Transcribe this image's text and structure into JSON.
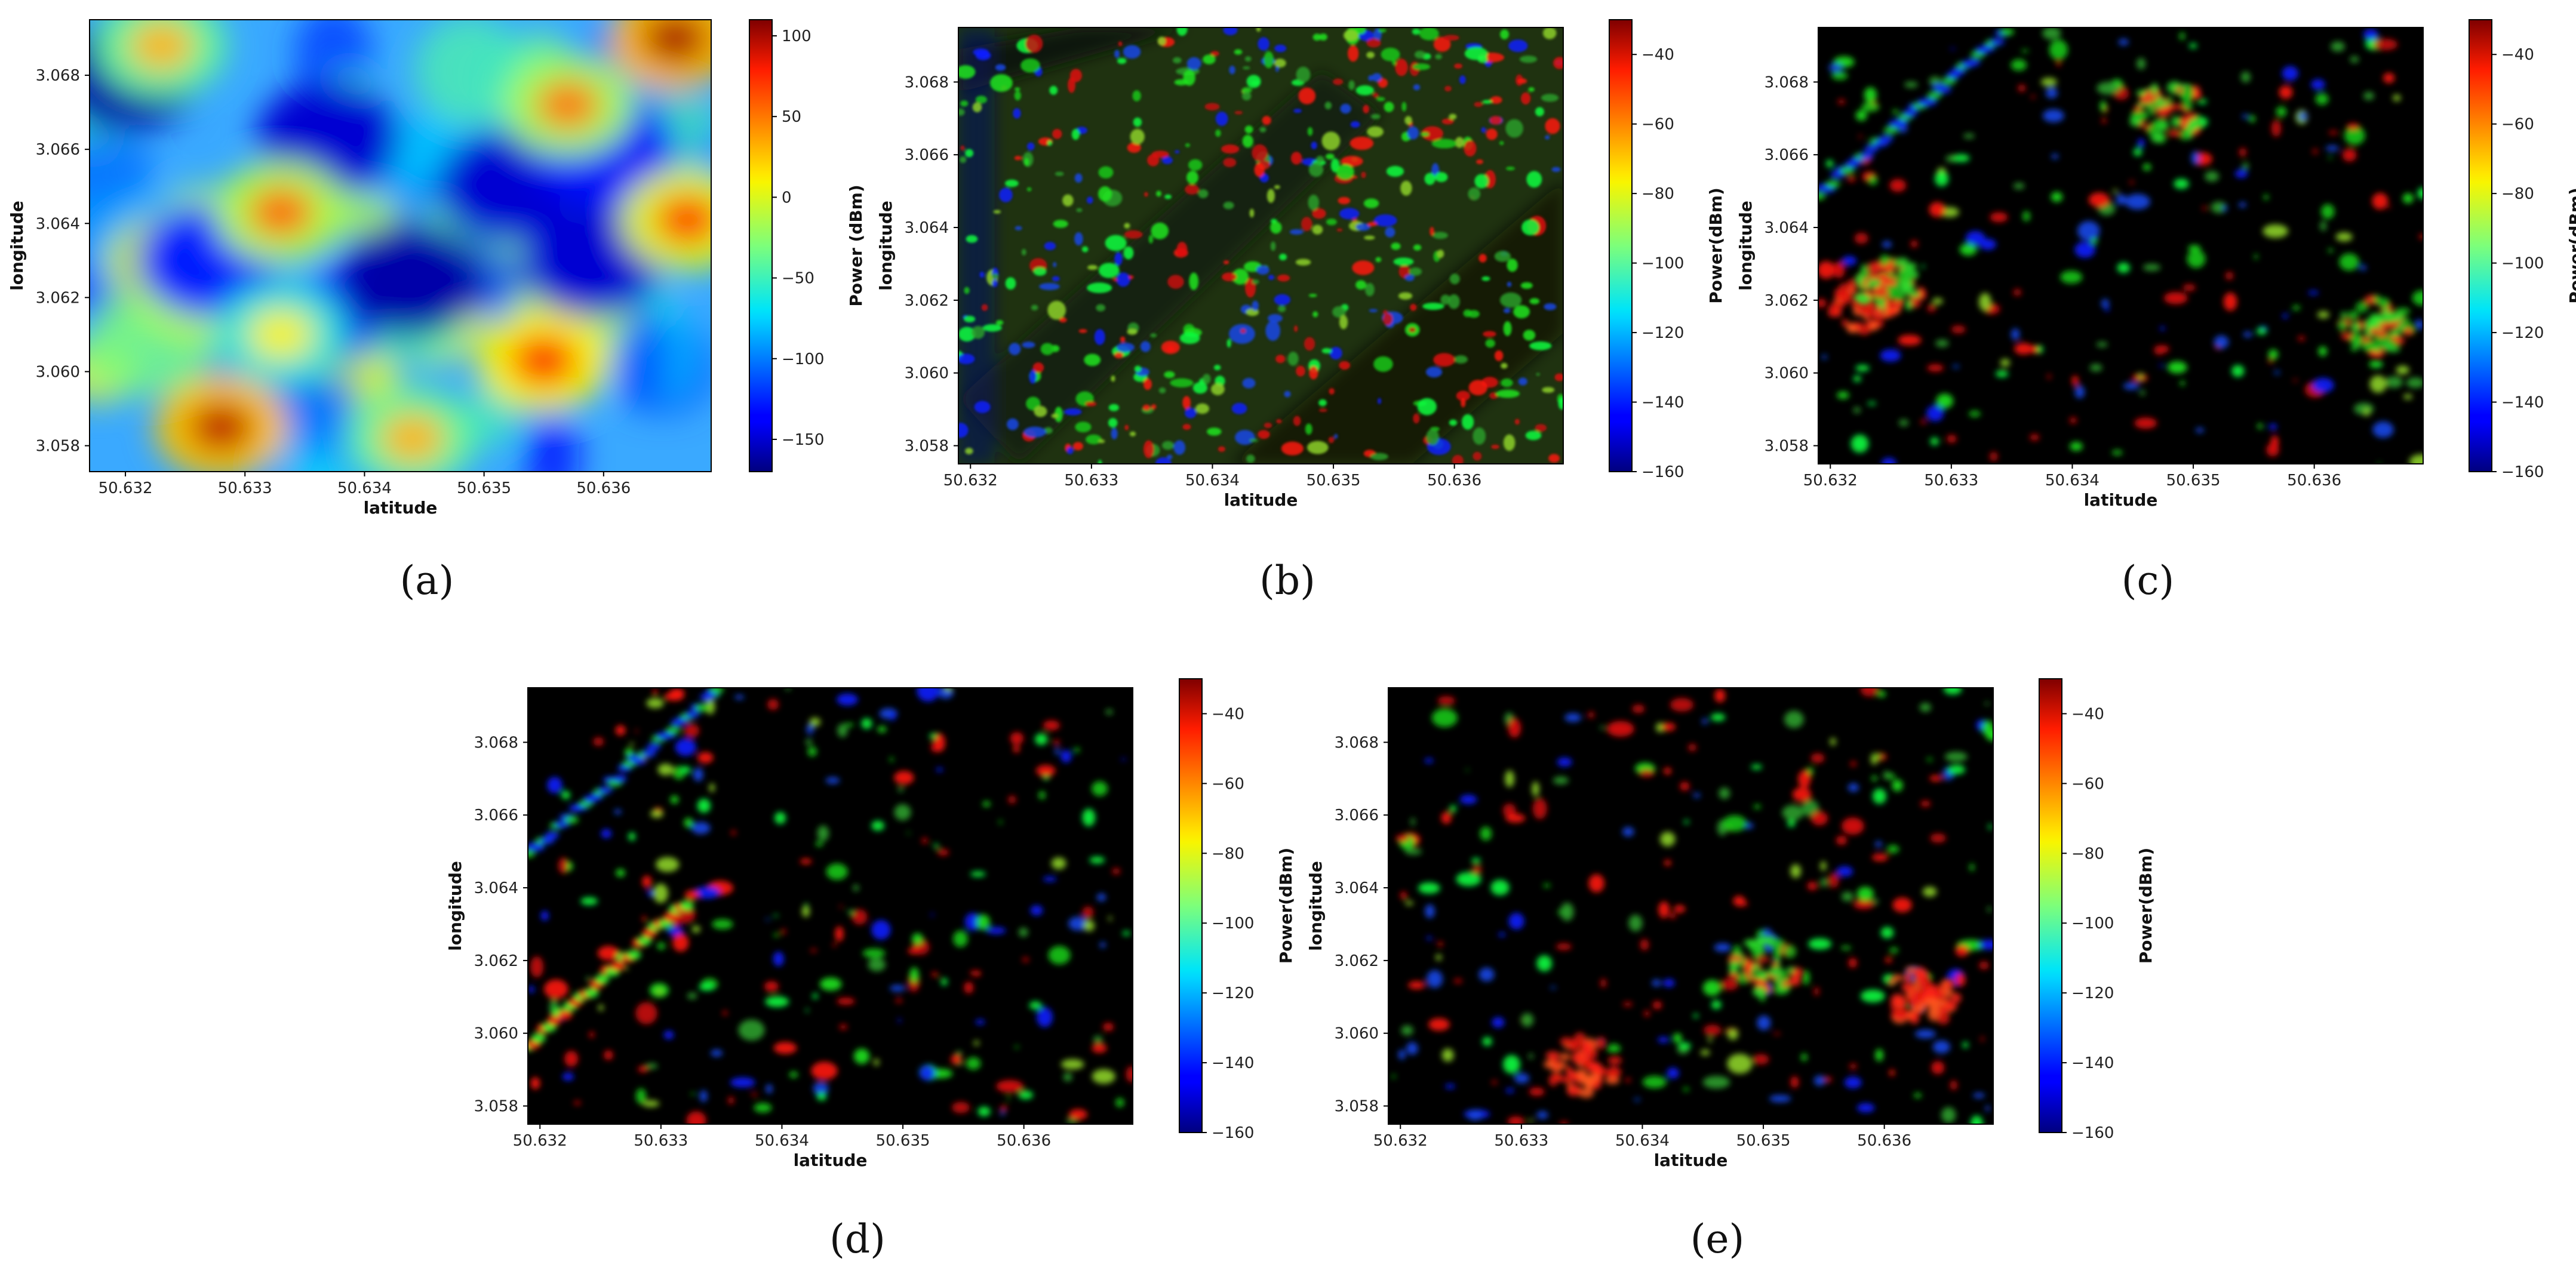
{
  "chart_data": [
    {
      "panel_label": "(a)",
      "type": "heatmap",
      "style": "jet-smooth",
      "xlabel": "latitude",
      "ylabel": "longitude",
      "x_ticks": [
        "50.632",
        "50.633",
        "50.634",
        "50.635",
        "50.636"
      ],
      "y_ticks": [
        "3.068",
        "3.066",
        "3.064",
        "3.062",
        "3.060",
        "3.058"
      ],
      "xlim": [
        50.6317,
        50.6369
      ],
      "ylim": [
        3.0573,
        3.0695
      ],
      "colorbar_label": "Power (dBm)",
      "colorbar_ticks": [
        "100",
        "50",
        "0",
        "−50",
        "−100",
        "−150"
      ],
      "colorbar_range": [
        -170,
        110
      ],
      "hotspots": [
        {
          "x": 50.6328,
          "y": 3.0585,
          "value": 95
        },
        {
          "x": 50.6355,
          "y": 3.0603,
          "value": 80
        },
        {
          "x": 50.6366,
          "y": 3.069,
          "value": 100
        },
        {
          "x": 50.6367,
          "y": 3.0641,
          "value": 70
        },
        {
          "x": 50.6333,
          "y": 3.0643,
          "value": 55
        },
        {
          "x": 50.6357,
          "y": 3.0672,
          "value": 50
        },
        {
          "x": 50.6323,
          "y": 3.0688,
          "value": 30
        },
        {
          "x": 50.6344,
          "y": 3.0582,
          "value": 30
        },
        {
          "x": 50.6333,
          "y": 3.061,
          "value": 10
        }
      ],
      "coldspots": [
        {
          "x": 50.632,
          "y": 3.068,
          "value": -160
        },
        {
          "x": 50.6344,
          "y": 3.0625,
          "value": -160
        },
        {
          "x": 50.6337,
          "y": 3.0663,
          "value": -150
        },
        {
          "x": 50.6352,
          "y": 3.065,
          "value": -150
        },
        {
          "x": 50.6359,
          "y": 3.063,
          "value": -150
        },
        {
          "x": 50.636,
          "y": 3.066,
          "value": -140
        },
        {
          "x": 50.6327,
          "y": 3.063,
          "value": -130
        }
      ]
    },
    {
      "panel_label": "(b)",
      "type": "heatmap",
      "style": "sparse-olive",
      "xlabel": "latitude",
      "ylabel": "longitude",
      "x_ticks": [
        "50.632",
        "50.633",
        "50.634",
        "50.635",
        "50.636"
      ],
      "y_ticks": [
        "3.068",
        "3.066",
        "3.064",
        "3.062",
        "3.060",
        "3.058"
      ],
      "xlim": [
        50.6319,
        50.6369
      ],
      "ylim": [
        3.0575,
        3.0695
      ],
      "colorbar_label": "Power(dBm)",
      "colorbar_ticks": [
        "−40",
        "−60",
        "−80",
        "−100",
        "−120",
        "−140",
        "−160"
      ],
      "colorbar_range": [
        -160,
        -30
      ]
    },
    {
      "panel_label": "(c)",
      "type": "heatmap",
      "style": "sparse-black",
      "xlabel": "latitude",
      "ylabel": "longitude",
      "x_ticks": [
        "50.632",
        "50.633",
        "50.634",
        "50.635",
        "50.636"
      ],
      "y_ticks": [
        "3.068",
        "3.066",
        "3.064",
        "3.062",
        "3.060",
        "3.058"
      ],
      "xlim": [
        50.6319,
        50.6369
      ],
      "ylim": [
        3.0575,
        3.0695
      ],
      "colorbar_label": "Power(dBm)",
      "colorbar_ticks": [
        "−40",
        "−60",
        "−80",
        "−100",
        "−120",
        "−140",
        "−160"
      ],
      "colorbar_range": [
        -160,
        -30
      ],
      "clusters": [
        {
          "x": 50.6323,
          "y": 3.0619,
          "value": -35
        },
        {
          "x": 50.6325,
          "y": 3.0624,
          "value": -95
        },
        {
          "x": 50.6348,
          "y": 3.0672,
          "value": -95
        },
        {
          "x": 50.6365,
          "y": 3.0613,
          "value": -95
        }
      ]
    },
    {
      "panel_label": "(d)",
      "type": "heatmap",
      "style": "sparse-black",
      "xlabel": "latitude",
      "ylabel": "longitude",
      "x_ticks": [
        "50.632",
        "50.633",
        "50.634",
        "50.635",
        "50.636"
      ],
      "y_ticks": [
        "3.068",
        "3.066",
        "3.064",
        "3.062",
        "3.060",
        "3.058"
      ],
      "xlim": [
        50.6319,
        50.6369
      ],
      "ylim": [
        3.0575,
        3.0695
      ],
      "colorbar_label": "Power(dBm)",
      "colorbar_ticks": [
        "−40",
        "−60",
        "−80",
        "−100",
        "−120",
        "−140",
        "−160"
      ],
      "colorbar_range": [
        -160,
        -30
      ]
    },
    {
      "panel_label": "(e)",
      "type": "heatmap",
      "style": "sparse-black",
      "xlabel": "latitude",
      "ylabel": "longitude",
      "x_ticks": [
        "50.632",
        "50.633",
        "50.634",
        "50.635",
        "50.636"
      ],
      "y_ticks": [
        "3.068",
        "3.066",
        "3.064",
        "3.062",
        "3.060",
        "3.058"
      ],
      "xlim": [
        50.6319,
        50.6369
      ],
      "ylim": [
        3.0575,
        3.0695
      ],
      "colorbar_label": "Power(dBm)",
      "colorbar_ticks": [
        "−40",
        "−60",
        "−80",
        "−100",
        "−120",
        "−140",
        "−160"
      ],
      "colorbar_range": [
        -160,
        -30
      ],
      "clusters": [
        {
          "x": 50.6335,
          "y": 3.0591,
          "value": -40
        },
        {
          "x": 50.635,
          "y": 3.0618,
          "value": -95
        },
        {
          "x": 50.6363,
          "y": 3.061,
          "value": -50
        }
      ]
    }
  ]
}
